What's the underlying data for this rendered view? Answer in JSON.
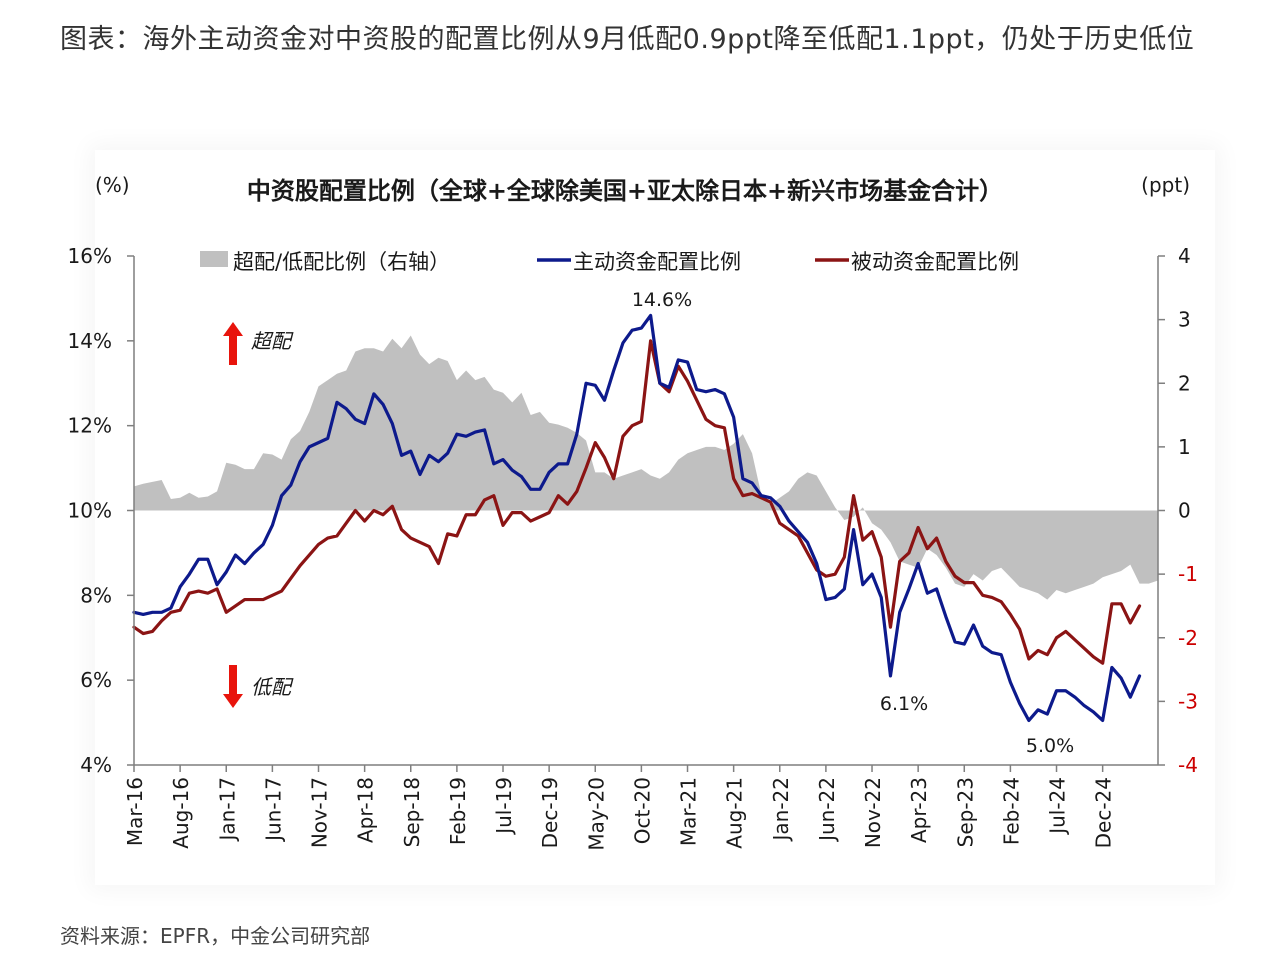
{
  "page": {
    "heading": "图表：海外主动资金对中资股的配置比例从9月低配0.9ppt降至低配1.1ppt，仍处于历史低位",
    "source": "资料来源：EPFR，中金公司研究部"
  },
  "chart_data": {
    "type": "line",
    "title": "中资股配置比例（全球+全球除美国+亚太除日本+新兴市场基金合计）",
    "ylabel_left": "(%)",
    "ylabel_right": "(ppt)",
    "ylim_left": [
      4,
      16
    ],
    "ylim_right": [
      -4,
      4
    ],
    "yticks_left": [
      "4%",
      "6%",
      "8%",
      "10%",
      "12%",
      "14%",
      "16%"
    ],
    "yticks_right": [
      "-4",
      "-3",
      "-2",
      "-1",
      "0",
      "1",
      "2",
      "3",
      "4"
    ],
    "x_tick_labels": [
      "Mar-16",
      "Aug-16",
      "Jan-17",
      "Jun-17",
      "Nov-17",
      "Apr-18",
      "Sep-18",
      "Feb-19",
      "Jul-19",
      "Dec-19",
      "May-20",
      "Oct-20",
      "Mar-21",
      "Aug-21",
      "Jan-22",
      "Jun-22",
      "Nov-22",
      "Apr-23",
      "Sep-23",
      "Feb-24",
      "Jul-24",
      "Dec-24"
    ],
    "legend": {
      "placement": "top",
      "entries": [
        "超配/低配比例（右轴）",
        "主动资金配置比例",
        "被动资金配置比例"
      ]
    },
    "annotations": {
      "overweight": "超配",
      "underweight": "低配",
      "peak": "14.6%",
      "low_2022": "6.1%",
      "low_2024": "5.0%"
    },
    "colors": {
      "area": "#c0c0c0",
      "active": "#0d1a8c",
      "passive": "#8b1414",
      "arrow": "#e8140c",
      "axis": "#7f7f7f",
      "right_axis_negative": "#cc0000"
    },
    "start_month": "Mar-16",
    "series": [
      {
        "name": "超配/低配比例（右轴）",
        "axis": "right",
        "values": [
          0.38,
          0.42,
          0.45,
          0.48,
          0.18,
          0.2,
          0.28,
          0.2,
          0.22,
          0.3,
          0.75,
          0.72,
          0.65,
          0.65,
          0.9,
          0.88,
          0.8,
          1.12,
          1.25,
          1.55,
          1.95,
          2.05,
          2.15,
          2.2,
          2.5,
          2.55,
          2.55,
          2.5,
          2.7,
          2.55,
          2.75,
          2.45,
          2.3,
          2.4,
          2.35,
          2.05,
          2.2,
          2.05,
          2.1,
          1.9,
          1.85,
          1.7,
          1.85,
          1.5,
          1.55,
          1.38,
          1.35,
          1.3,
          1.22,
          1.1,
          0.6,
          0.6,
          0.5,
          0.55,
          0.6,
          0.65,
          0.55,
          0.5,
          0.6,
          0.8,
          0.9,
          0.95,
          1.0,
          1.0,
          0.95,
          1.05,
          1.2,
          0.9,
          0.25,
          0.1,
          0.2,
          0.3,
          0.5,
          0.6,
          0.55,
          0.3,
          0.05,
          -0.15,
          -0.1,
          0.05,
          -0.2,
          -0.3,
          -0.5,
          -0.8,
          -0.85,
          -0.9,
          -0.6,
          -0.7,
          -0.9,
          -1.15,
          -1.2,
          -1.0,
          -1.1,
          -0.95,
          -0.9,
          -1.05,
          -1.2,
          -1.25,
          -1.3,
          -1.4,
          -1.25,
          -1.3,
          -1.25,
          -1.2,
          -1.15,
          -1.05,
          -1.0,
          -0.95,
          -0.85,
          -1.15,
          -1.15,
          -1.1
        ]
      },
      {
        "name": "主动资金配置比例",
        "axis": "left",
        "values": [
          7.6,
          7.55,
          7.6,
          7.6,
          7.7,
          8.2,
          8.5,
          8.85,
          8.85,
          8.25,
          8.55,
          8.95,
          8.75,
          9.0,
          9.2,
          9.65,
          10.35,
          10.6,
          11.15,
          11.5,
          11.6,
          11.7,
          12.55,
          12.4,
          12.15,
          12.05,
          12.75,
          12.5,
          12.05,
          11.3,
          11.4,
          10.85,
          11.3,
          11.15,
          11.35,
          11.8,
          11.75,
          11.85,
          11.9,
          11.1,
          11.2,
          10.95,
          10.8,
          10.5,
          10.5,
          10.9,
          11.1,
          11.1,
          11.8,
          13.0,
          12.95,
          12.6,
          13.3,
          13.95,
          14.25,
          14.3,
          14.6,
          13.0,
          12.9,
          13.55,
          13.5,
          12.85,
          12.8,
          12.85,
          12.75,
          12.2,
          10.75,
          10.65,
          10.35,
          10.3,
          10.1,
          9.75,
          9.5,
          9.25,
          8.75,
          7.9,
          7.95,
          8.15,
          9.55,
          8.25,
          8.5,
          7.95,
          6.1,
          7.6,
          8.15,
          8.75,
          8.05,
          8.15,
          7.5,
          6.9,
          6.85,
          7.3,
          6.8,
          6.65,
          6.6,
          5.95,
          5.45,
          5.05,
          5.3,
          5.2,
          5.75,
          5.75,
          5.6,
          5.4,
          5.25,
          5.05,
          6.3,
          6.05,
          5.6,
          6.1
        ]
      },
      {
        "name": "被动资金配置比例",
        "axis": "left",
        "values": [
          7.25,
          7.1,
          7.15,
          7.4,
          7.6,
          7.65,
          8.05,
          8.1,
          8.05,
          8.15,
          7.6,
          7.75,
          7.9,
          7.9,
          7.9,
          8.0,
          8.1,
          8.4,
          8.7,
          8.95,
          9.2,
          9.35,
          9.4,
          9.7,
          10.0,
          9.75,
          10.0,
          9.9,
          10.1,
          9.55,
          9.35,
          9.25,
          9.15,
          8.75,
          9.45,
          9.4,
          9.9,
          9.9,
          10.25,
          10.35,
          9.65,
          9.95,
          9.95,
          9.75,
          9.85,
          9.95,
          10.35,
          10.15,
          10.45,
          11.0,
          11.6,
          11.25,
          10.75,
          11.75,
          12.0,
          12.1,
          14.0,
          13.0,
          12.8,
          13.4,
          13.05,
          12.6,
          12.15,
          12.0,
          11.95,
          10.75,
          10.35,
          10.4,
          10.3,
          10.2,
          9.7,
          9.55,
          9.4,
          9.0,
          8.6,
          8.45,
          8.5,
          8.9,
          10.35,
          9.3,
          9.5,
          8.9,
          7.25,
          8.8,
          9.0,
          9.6,
          9.1,
          9.35,
          8.8,
          8.45,
          8.3,
          8.3,
          8.0,
          7.95,
          7.85,
          7.55,
          7.2,
          6.5,
          6.7,
          6.6,
          7.0,
          7.15,
          6.95,
          6.75,
          6.55,
          6.4,
          7.8,
          7.8,
          7.35,
          7.75
        ]
      }
    ]
  }
}
